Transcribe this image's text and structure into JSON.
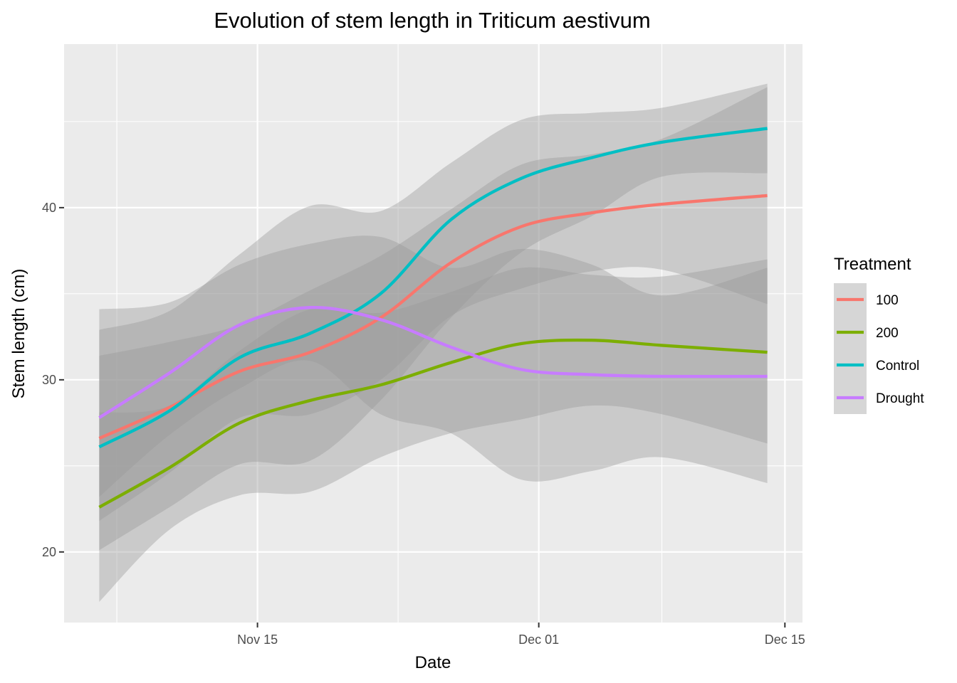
{
  "chart_data": {
    "type": "line",
    "title": "Evolution of stem length in Triticum aestivum",
    "xlabel": "Date",
    "ylabel": "Stem length (cm)",
    "x_ticks": [
      {
        "date": "2023-11-15",
        "label": "Nov 15"
      },
      {
        "date": "2023-12-01",
        "label": "Dec 01"
      },
      {
        "date": "2023-12-15",
        "label": "Dec 15"
      }
    ],
    "y_ticks": [
      20,
      30,
      40
    ],
    "xlim": [
      "2023-11-04",
      "2023-12-16"
    ],
    "ylim": [
      15.9,
      49.5
    ],
    "grid": true,
    "legend": {
      "title": "Treatment",
      "position": "right"
    },
    "series": [
      {
        "name": "100",
        "color": "#F8766D",
        "points": [
          {
            "x": "2023-11-06",
            "y": 26.6,
            "lo": 21.8,
            "hi": 31.4
          },
          {
            "x": "2023-11-10",
            "y": 28.4,
            "lo": 24.6,
            "hi": 32.2
          },
          {
            "x": "2023-11-14",
            "y": 30.5,
            "lo": 27.8,
            "hi": 33.2
          },
          {
            "x": "2023-11-18",
            "y": 31.6,
            "lo": 28.0,
            "hi": 35.2
          },
          {
            "x": "2023-11-22",
            "y": 33.6,
            "lo": 30.0,
            "hi": 37.2
          },
          {
            "x": "2023-11-26",
            "y": 36.8,
            "lo": 33.7,
            "hi": 39.9
          },
          {
            "x": "2023-11-30",
            "y": 38.9,
            "lo": 35.3,
            "hi": 42.5
          },
          {
            "x": "2023-12-04",
            "y": 39.7,
            "lo": 36.3,
            "hi": 43.1
          },
          {
            "x": "2023-12-08",
            "y": 40.2,
            "lo": 36.4,
            "hi": 44.0
          },
          {
            "x": "2023-12-14",
            "y": 40.7,
            "lo": 34.4,
            "hi": 47.0
          }
        ]
      },
      {
        "name": "200",
        "color": "#7CAE00",
        "points": [
          {
            "x": "2023-11-06",
            "y": 22.6,
            "lo": 17.1,
            "hi": 28.1
          },
          {
            "x": "2023-11-10",
            "y": 24.9,
            "lo": 21.3,
            "hi": 28.5
          },
          {
            "x": "2023-11-14",
            "y": 27.5,
            "lo": 23.3,
            "hi": 31.7
          },
          {
            "x": "2023-11-18",
            "y": 28.8,
            "lo": 23.5,
            "hi": 34.1
          },
          {
            "x": "2023-11-22",
            "y": 29.7,
            "lo": 25.5,
            "hi": 33.9
          },
          {
            "x": "2023-11-26",
            "y": 31.0,
            "lo": 26.9,
            "hi": 35.1
          },
          {
            "x": "2023-11-30",
            "y": 32.1,
            "lo": 27.7,
            "hi": 36.5
          },
          {
            "x": "2023-12-04",
            "y": 32.3,
            "lo": 28.5,
            "hi": 36.1
          },
          {
            "x": "2023-12-08",
            "y": 32.0,
            "lo": 28.0,
            "hi": 36.0
          },
          {
            "x": "2023-12-14",
            "y": 31.6,
            "lo": 26.3,
            "hi": 37.0
          }
        ]
      },
      {
        "name": "Control",
        "color": "#00BFC4",
        "points": [
          {
            "x": "2023-11-06",
            "y": 26.1,
            "lo": 20.1,
            "hi": 32.9
          },
          {
            "x": "2023-11-10",
            "y": 28.2,
            "lo": 22.6,
            "hi": 34.0
          },
          {
            "x": "2023-11-14",
            "y": 31.3,
            "lo": 25.1,
            "hi": 37.3
          },
          {
            "x": "2023-11-18",
            "y": 32.7,
            "lo": 25.3,
            "hi": 40.1
          },
          {
            "x": "2023-11-22",
            "y": 35.0,
            "lo": 28.8,
            "hi": 39.8
          },
          {
            "x": "2023-11-26",
            "y": 39.3,
            "lo": 33.6,
            "hi": 42.6
          },
          {
            "x": "2023-11-30",
            "y": 41.7,
            "lo": 37.4,
            "hi": 45.1
          },
          {
            "x": "2023-12-04",
            "y": 42.9,
            "lo": 39.5,
            "hi": 45.5
          },
          {
            "x": "2023-12-08",
            "y": 43.8,
            "lo": 41.8,
            "hi": 45.8
          },
          {
            "x": "2023-12-14",
            "y": 44.6,
            "lo": 42.0,
            "hi": 47.2
          }
        ]
      },
      {
        "name": "Drought",
        "color": "#C77CFF",
        "points": [
          {
            "x": "2023-11-06",
            "y": 27.8,
            "lo": 23.2,
            "hi": 34.1
          },
          {
            "x": "2023-11-10",
            "y": 30.4,
            "lo": 26.8,
            "hi": 34.5
          },
          {
            "x": "2023-11-14",
            "y": 33.2,
            "lo": 29.5,
            "hi": 36.7
          },
          {
            "x": "2023-11-18",
            "y": 34.2,
            "lo": 31.1,
            "hi": 37.9
          },
          {
            "x": "2023-11-22",
            "y": 33.5,
            "lo": 28.0,
            "hi": 38.3
          },
          {
            "x": "2023-11-26",
            "y": 31.9,
            "lo": 26.9,
            "hi": 36.5
          },
          {
            "x": "2023-11-30",
            "y": 30.6,
            "lo": 24.2,
            "hi": 37.6
          },
          {
            "x": "2023-12-04",
            "y": 30.3,
            "lo": 24.7,
            "hi": 36.7
          },
          {
            "x": "2023-12-08",
            "y": 30.2,
            "lo": 25.5,
            "hi": 34.9
          },
          {
            "x": "2023-12-14",
            "y": 30.2,
            "lo": 24.0,
            "hi": 36.5
          }
        ]
      }
    ]
  }
}
